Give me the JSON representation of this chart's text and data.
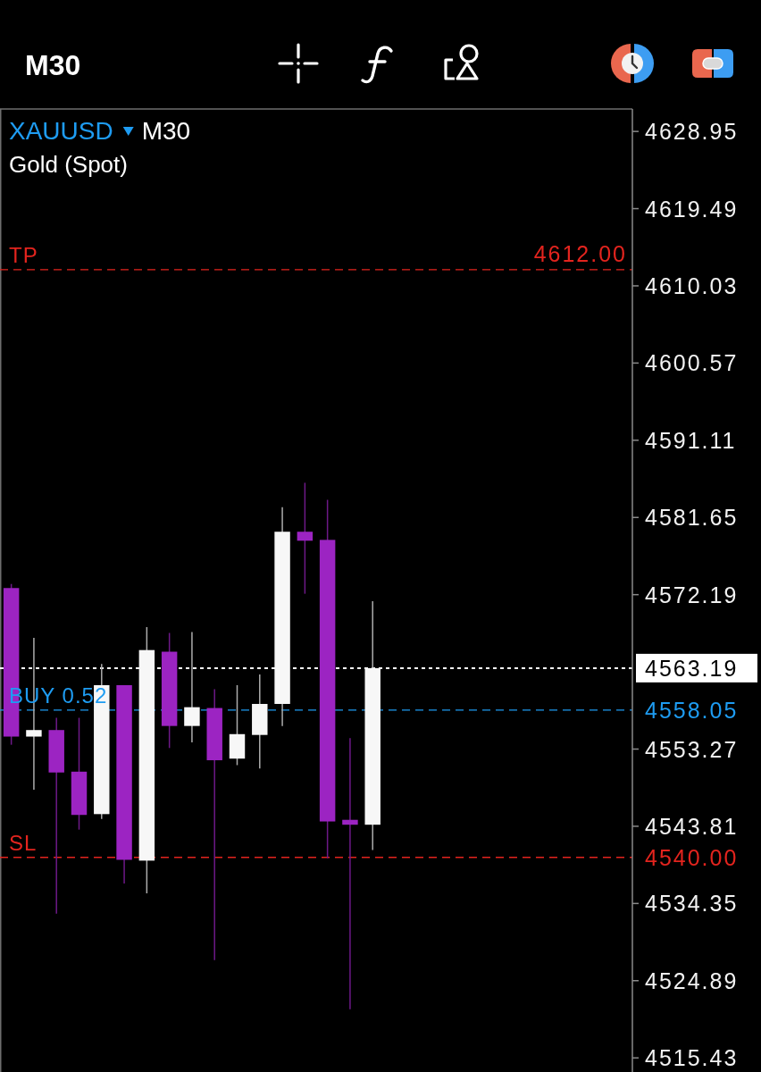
{
  "chart_data": {
    "type": "candlestick",
    "title": "XAUUSD M30",
    "subtitle": "Gold (Spot)",
    "annotations": [
      "M30",
      "4612.00",
      "4563.19",
      "4558.05",
      "4540.00"
    ],
    "categories": [
      null,
      null,
      null,
      null,
      null,
      null,
      null,
      null,
      null,
      null,
      null,
      null,
      null,
      null,
      null,
      null,
      null,
      null,
      null,
      null,
      null,
      null,
      null,
      null,
      null,
      null,
      null,
      null
    ],
    "ohlc": [
      [
        4573.0,
        4573.5,
        4553.8,
        4554.8
      ],
      [
        4554.8,
        4566.9,
        4548.3,
        4555.6
      ],
      [
        4555.6,
        4557.1,
        4533.1,
        4550.4
      ],
      [
        4550.5,
        4557.1,
        4543.4,
        4545.2
      ],
      [
        4545.3,
        4563.7,
        4544.7,
        4561.1
      ],
      [
        4561.1,
        4561.1,
        4536.8,
        4539.7
      ],
      [
        4539.6,
        4568.2,
        4535.6,
        4565.4
      ],
      [
        4565.2,
        4567.5,
        4553.4,
        4556.1
      ],
      [
        4556.1,
        4567.6,
        4554.1,
        4558.4
      ],
      [
        4558.3,
        4560.6,
        4527.4,
        4551.9
      ],
      [
        4552.1,
        4561.1,
        4551.3,
        4555.1
      ],
      [
        4555.0,
        4562.4,
        4550.9,
        4558.8
      ],
      [
        4558.8,
        4582.9,
        4556.1,
        4579.9
      ],
      [
        4579.9,
        4585.9,
        4572.3,
        4578.8
      ],
      [
        4578.9,
        4583.8,
        4539.9,
        4544.4
      ],
      [
        4544.6,
        4554.6,
        4521.4,
        4544.0
      ],
      [
        4544.0,
        4571.4,
        4540.9,
        4563.19
      ],
      null,
      null,
      null,
      null,
      null,
      null,
      null,
      null,
      null,
      null,
      null
    ],
    "colors": [
      "#9c24c2",
      "#f7f7f7",
      "#9c24c2",
      "#9c24c2",
      "#f7f7f7",
      "#9c24c2",
      "#f7f7f7",
      "#9c24c2",
      "#f7f7f7",
      "#9c24c2",
      "#f7f7f7",
      "#f7f7f7",
      "#f7f7f7",
      "#9c24c2",
      "#9c24c2",
      "#9c24c2",
      "#f7f7f7",
      null,
      null,
      null,
      null,
      null,
      null,
      null,
      null,
      null,
      null,
      null
    ],
    "ylim": [
      4513.7,
      4631.7
    ],
    "yticks": [
      4628.95,
      4619.49,
      4610.03,
      4600.57,
      4591.11,
      4581.65,
      4572.19,
      4553.27,
      4543.81,
      4534.35,
      4524.89,
      4515.43
    ],
    "ref_lines": [
      {
        "axis": "y",
        "value": 4612,
        "label": "TP",
        "color": "#e3241e",
        "line_style": "dashed"
      },
      {
        "axis": "y",
        "value": 4563.19,
        "color": "#ffffff",
        "line_style": "dotted"
      },
      {
        "axis": "y",
        "value": 4558.05,
        "label": "BUY 0.52",
        "color": "#1e9cf2",
        "line_style": "dashed"
      },
      {
        "axis": "y",
        "value": 4540,
        "label": "SL",
        "color": "#e3241e",
        "line_style": "dashed"
      }
    ],
    "tick_labels": "y"
  }
}
